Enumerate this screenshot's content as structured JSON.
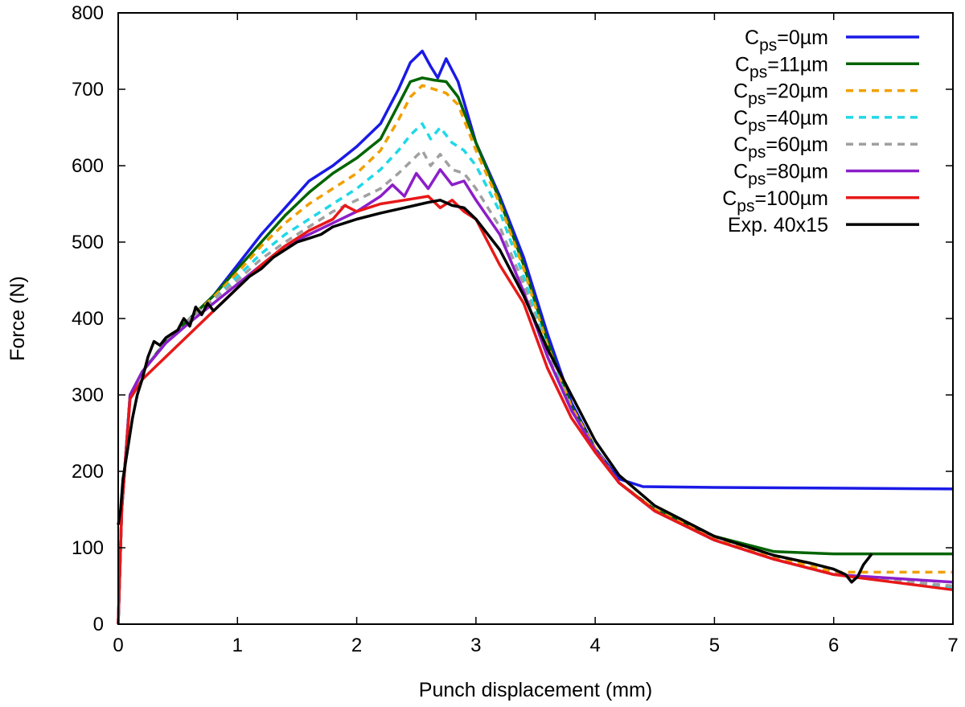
{
  "chart_data": {
    "type": "line",
    "title": "",
    "xlabel": "Punch displacement (mm)",
    "ylabel": "Force (N)",
    "xlim": [
      0,
      7
    ],
    "ylim": [
      0,
      800
    ],
    "xticks": [
      "0",
      "1",
      "2",
      "3",
      "4",
      "5",
      "6",
      "7"
    ],
    "yticks": [
      "0",
      "100",
      "200",
      "300",
      "400",
      "500",
      "600",
      "700",
      "800"
    ],
    "grid": false,
    "legend_position": "top-right",
    "series": [
      {
        "key": "cps0",
        "label_main": "C",
        "label_sub": "ps",
        "label_tail": "=0µm",
        "color": "#1a1ae6",
        "dash": "solid",
        "x": [
          0,
          0.03,
          0.1,
          0.2,
          0.4,
          0.6,
          0.8,
          1.0,
          1.2,
          1.4,
          1.6,
          1.8,
          2.0,
          2.2,
          2.35,
          2.45,
          2.55,
          2.62,
          2.68,
          2.75,
          2.85,
          3.0,
          3.2,
          3.4,
          3.6,
          3.8,
          4.0,
          4.2,
          4.4,
          5.0,
          6.0,
          7.0
        ],
        "y": [
          0,
          150,
          300,
          330,
          370,
          400,
          430,
          470,
          510,
          545,
          580,
          600,
          625,
          655,
          700,
          735,
          750,
          730,
          715,
          740,
          710,
          630,
          560,
          480,
          380,
          290,
          230,
          190,
          180,
          179,
          178,
          177
        ]
      },
      {
        "key": "cps11",
        "label_main": "C",
        "label_sub": "ps",
        "label_tail": "=11µm",
        "color": "#006400",
        "dash": "solid",
        "x": [
          0,
          0.03,
          0.1,
          0.2,
          0.4,
          0.6,
          0.8,
          1.0,
          1.2,
          1.4,
          1.6,
          1.8,
          2.0,
          2.2,
          2.35,
          2.45,
          2.55,
          2.65,
          2.75,
          2.85,
          3.0,
          3.2,
          3.4,
          3.6,
          3.8,
          4.0,
          4.2,
          4.5,
          5.0,
          5.5,
          6.0,
          7.0
        ],
        "y": [
          0,
          150,
          300,
          330,
          370,
          400,
          430,
          465,
          500,
          535,
          565,
          590,
          610,
          635,
          680,
          710,
          715,
          712,
          710,
          690,
          630,
          555,
          470,
          370,
          285,
          230,
          185,
          150,
          115,
          95,
          92,
          92
        ]
      },
      {
        "key": "cps20",
        "label_main": "C",
        "label_sub": "ps",
        "label_tail": "=20µm",
        "color": "#f0a000",
        "dash": "dashed",
        "x": [
          0,
          0.03,
          0.1,
          0.2,
          0.4,
          0.6,
          0.8,
          1.0,
          1.2,
          1.4,
          1.6,
          1.8,
          2.0,
          2.2,
          2.35,
          2.45,
          2.55,
          2.65,
          2.75,
          2.85,
          3.0,
          3.2,
          3.4,
          3.6,
          3.8,
          4.0,
          4.2,
          4.5,
          5.0,
          5.5,
          6.0,
          7.0
        ],
        "y": [
          0,
          150,
          300,
          330,
          370,
          400,
          428,
          460,
          495,
          525,
          550,
          570,
          590,
          620,
          660,
          690,
          705,
          700,
          695,
          680,
          620,
          550,
          465,
          365,
          285,
          230,
          185,
          150,
          112,
          88,
          68,
          68
        ]
      },
      {
        "key": "cps40",
        "label_main": "C",
        "label_sub": "ps",
        "label_tail": "=40µm",
        "color": "#20d8e8",
        "dash": "dashed",
        "x": [
          0,
          0.03,
          0.1,
          0.2,
          0.4,
          0.6,
          0.8,
          1.0,
          1.2,
          1.4,
          1.6,
          1.8,
          2.0,
          2.2,
          2.35,
          2.45,
          2.55,
          2.62,
          2.7,
          2.8,
          2.9,
          3.0,
          3.2,
          3.4,
          3.6,
          3.8,
          4.0,
          4.2,
          4.5,
          5.0,
          5.5,
          6.0,
          7.0
        ],
        "y": [
          0,
          150,
          300,
          330,
          370,
          400,
          425,
          455,
          485,
          510,
          530,
          550,
          570,
          595,
          620,
          640,
          655,
          635,
          650,
          630,
          620,
          600,
          540,
          455,
          360,
          280,
          228,
          185,
          148,
          110,
          85,
          65,
          48
        ]
      },
      {
        "key": "cps60",
        "label_main": "C",
        "label_sub": "ps",
        "label_tail": "=60µm",
        "color": "#a0a0a0",
        "dash": "dashed",
        "x": [
          0,
          0.03,
          0.1,
          0.2,
          0.4,
          0.6,
          0.8,
          1.0,
          1.2,
          1.4,
          1.6,
          1.8,
          2.0,
          2.2,
          2.35,
          2.45,
          2.55,
          2.62,
          2.7,
          2.8,
          2.9,
          3.0,
          3.2,
          3.4,
          3.6,
          3.8,
          4.0,
          4.2,
          4.5,
          5.0,
          5.5,
          6.0,
          7.0
        ],
        "y": [
          0,
          150,
          300,
          330,
          370,
          400,
          425,
          450,
          478,
          500,
          520,
          540,
          555,
          570,
          590,
          605,
          620,
          600,
          615,
          595,
          590,
          570,
          520,
          445,
          355,
          280,
          228,
          185,
          148,
          110,
          85,
          65,
          50
        ]
      },
      {
        "key": "cps80",
        "label_main": "C",
        "label_sub": "ps",
        "label_tail": "=80µm",
        "color": "#8c1ec8",
        "dash": "solid",
        "x": [
          0,
          0.03,
          0.1,
          0.2,
          0.4,
          0.6,
          0.8,
          1.0,
          1.2,
          1.4,
          1.6,
          1.8,
          2.0,
          2.2,
          2.3,
          2.4,
          2.5,
          2.6,
          2.7,
          2.8,
          2.9,
          3.0,
          3.2,
          3.4,
          3.6,
          3.8,
          4.0,
          4.2,
          4.5,
          5.0,
          5.5,
          6.0,
          7.0
        ],
        "y": [
          0,
          150,
          300,
          330,
          368,
          395,
          420,
          445,
          470,
          495,
          510,
          525,
          540,
          560,
          575,
          560,
          590,
          570,
          595,
          575,
          580,
          555,
          510,
          435,
          350,
          280,
          228,
          185,
          148,
          110,
          85,
          65,
          55
        ]
      },
      {
        "key": "cps100",
        "label_main": "C",
        "label_sub": "ps",
        "label_tail": "=100µm",
        "color": "#e81818",
        "dash": "solid",
        "x": [
          0,
          0.03,
          0.1,
          0.2,
          0.4,
          0.6,
          0.8,
          1.0,
          1.2,
          1.4,
          1.6,
          1.8,
          1.9,
          2.0,
          2.2,
          2.4,
          2.6,
          2.7,
          2.8,
          2.9,
          3.0,
          3.1,
          3.2,
          3.4,
          3.6,
          3.8,
          4.0,
          4.2,
          4.5,
          5.0,
          5.5,
          6.0,
          6.5,
          7.0
        ],
        "y": [
          0,
          150,
          295,
          320,
          350,
          380,
          410,
          440,
          470,
          495,
          515,
          530,
          548,
          540,
          550,
          555,
          560,
          545,
          555,
          540,
          530,
          500,
          470,
          420,
          335,
          270,
          225,
          185,
          148,
          110,
          85,
          65,
          55,
          45
        ]
      },
      {
        "key": "exp",
        "label_main": "Exp. 40x15",
        "label_sub": "",
        "label_tail": "",
        "color": "#000000",
        "dash": "solid",
        "x": [
          0,
          0.02,
          0.04,
          0.08,
          0.12,
          0.16,
          0.2,
          0.25,
          0.3,
          0.35,
          0.4,
          0.45,
          0.5,
          0.55,
          0.6,
          0.65,
          0.7,
          0.75,
          0.8,
          0.9,
          1.0,
          1.1,
          1.2,
          1.3,
          1.4,
          1.5,
          1.6,
          1.7,
          1.8,
          1.9,
          2.0,
          2.2,
          2.4,
          2.6,
          2.7,
          2.8,
          2.9,
          3.0,
          3.2,
          3.4,
          3.6,
          3.8,
          4.0,
          4.2,
          4.5,
          5.0,
          5.5,
          5.8,
          6.0,
          6.1,
          6.15,
          6.2,
          6.25,
          6.3,
          6.32
        ],
        "y": [
          130,
          150,
          190,
          230,
          270,
          300,
          320,
          350,
          370,
          365,
          375,
          380,
          385,
          400,
          390,
          415,
          405,
          420,
          410,
          425,
          440,
          455,
          465,
          480,
          490,
          500,
          505,
          510,
          520,
          525,
          530,
          538,
          545,
          552,
          555,
          548,
          545,
          530,
          490,
          430,
          360,
          300,
          240,
          195,
          155,
          115,
          90,
          80,
          72,
          65,
          55,
          62,
          78,
          88,
          92
        ]
      }
    ]
  }
}
